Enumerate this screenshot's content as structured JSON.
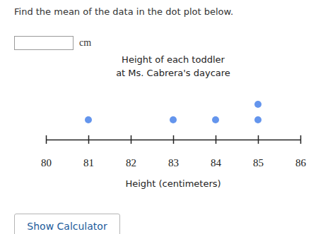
{
  "question": "Find the mean of the data in the dot plot below.",
  "unit": "cm",
  "button": "Show Calculator",
  "chart_data": {
    "type": "dot",
    "title": [
      "Height of each toddler",
      "at Ms. Cabrera's daycare"
    ],
    "xlabel": "Height (centimeters)",
    "x": [
      81,
      83,
      84,
      85,
      85
    ],
    "color": "#6495ed",
    "xlim": [
      80,
      86
    ],
    "xticks": [
      80,
      81,
      82,
      83,
      84,
      85,
      86
    ],
    "tick_labels": "x",
    "grid": false
  }
}
